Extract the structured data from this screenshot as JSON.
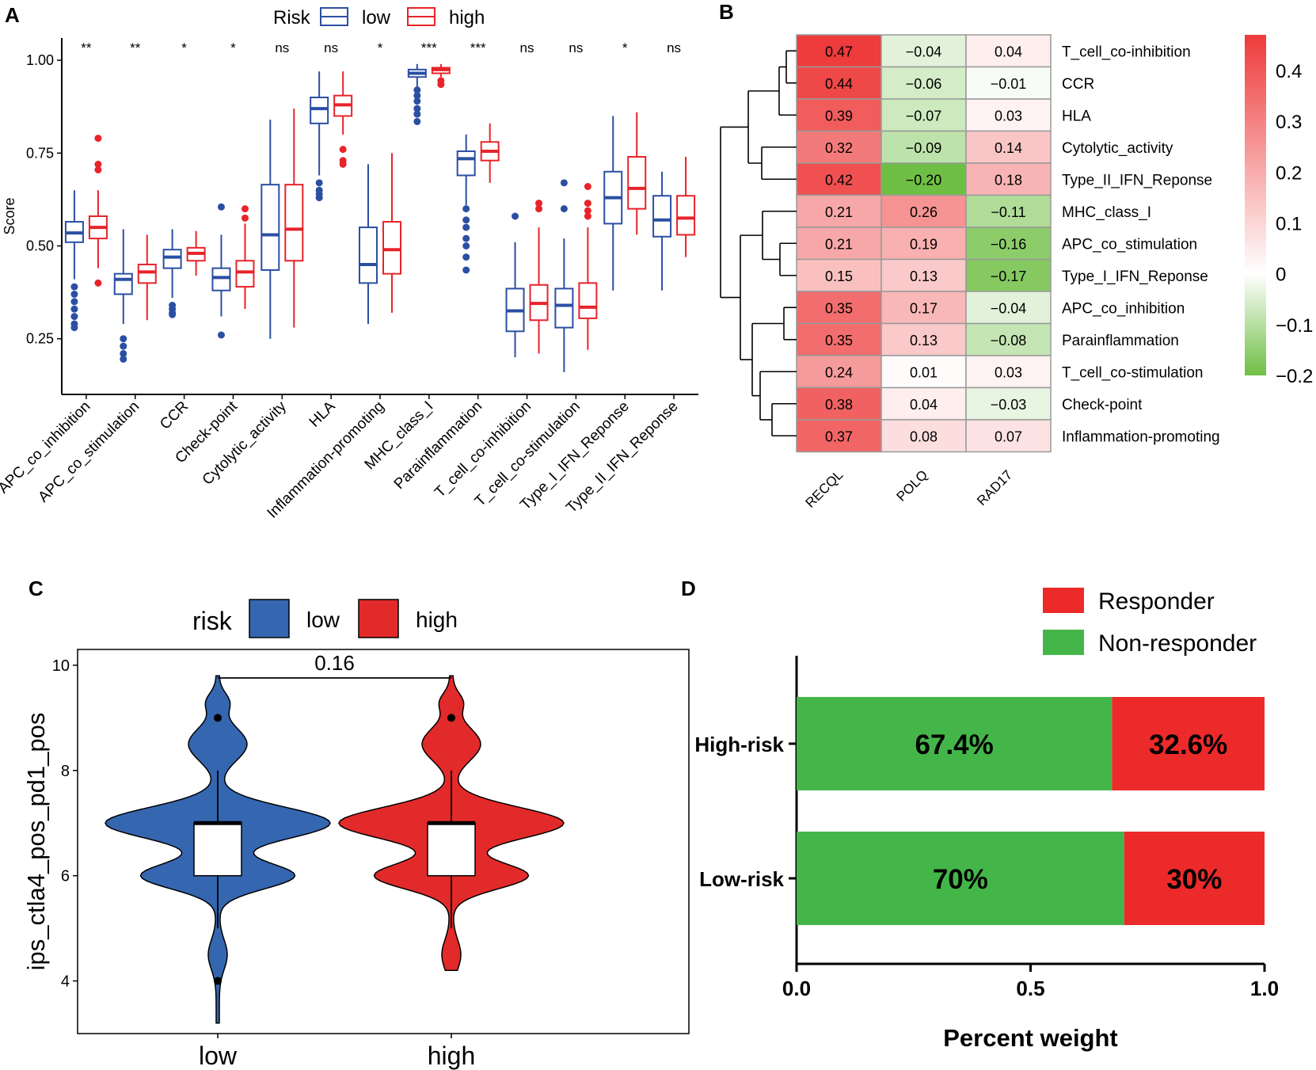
{
  "chart_data": [
    {
      "panel": "A",
      "type": "box",
      "ylabel": "Score",
      "ylim": [
        0.1,
        1.06
      ],
      "yticks": [
        0.25,
        0.5,
        0.75,
        1.0
      ],
      "ytick_labels": [
        "0.25",
        "0.50",
        "0.75",
        "1.00"
      ],
      "legend": {
        "title": "Risk",
        "items": [
          "low",
          "high"
        ],
        "placement": "top"
      },
      "colors": {
        "low": "#2b4fa3",
        "high": "#e8232a"
      },
      "categories": [
        "APC_co_inhibition",
        "APC_co_stimulation",
        "CCR",
        "Check-point",
        "Cytolytic_activity",
        "HLA",
        "Inflammation-promoting",
        "MHC_class_I",
        "Parainflammation",
        "T_cell_co-inhibition",
        "T_cell_co-stimulation",
        "Type_I_IFN_Reponse",
        "Type_II_IFN_Reponse"
      ],
      "significance": [
        "**",
        "**",
        "*",
        "*",
        "ns",
        "ns",
        "*",
        "***",
        "***",
        "ns",
        "ns",
        "*",
        "ns"
      ],
      "series": [
        {
          "name": "low",
          "boxes": [
            {
              "min": 0.41,
              "q1": 0.51,
              "median": 0.535,
              "q3": 0.565,
              "max": 0.65,
              "outliers": [
                0.39,
                0.37,
                0.35,
                0.33,
                0.31,
                0.29,
                0.28
              ]
            },
            {
              "min": 0.29,
              "q1": 0.37,
              "median": 0.41,
              "q3": 0.425,
              "max": 0.545,
              "outliers": [
                0.25,
                0.23,
                0.21,
                0.195
              ]
            },
            {
              "min": 0.36,
              "q1": 0.44,
              "median": 0.47,
              "q3": 0.49,
              "max": 0.545,
              "outliers": [
                0.34,
                0.33,
                0.32,
                0.315
              ]
            },
            {
              "min": 0.31,
              "q1": 0.38,
              "median": 0.415,
              "q3": 0.44,
              "max": 0.53,
              "outliers": [
                0.605,
                0.26
              ]
            },
            {
              "min": 0.25,
              "q1": 0.435,
              "median": 0.53,
              "q3": 0.665,
              "max": 0.84,
              "outliers": []
            },
            {
              "min": 0.69,
              "q1": 0.83,
              "median": 0.87,
              "q3": 0.9,
              "max": 0.97,
              "outliers": [
                0.67,
                0.65,
                0.64,
                0.63
              ]
            },
            {
              "min": 0.29,
              "q1": 0.4,
              "median": 0.45,
              "q3": 0.55,
              "max": 0.72,
              "outliers": []
            },
            {
              "min": 0.925,
              "q1": 0.955,
              "median": 0.965,
              "q3": 0.975,
              "max": 0.99,
              "outliers": [
                0.92,
                0.905,
                0.89,
                0.87,
                0.855,
                0.835
              ]
            },
            {
              "min": 0.61,
              "q1": 0.69,
              "median": 0.735,
              "q3": 0.755,
              "max": 0.8,
              "outliers": [
                0.6,
                0.57,
                0.55,
                0.52,
                0.5,
                0.47,
                0.435
              ]
            },
            {
              "min": 0.2,
              "q1": 0.27,
              "median": 0.325,
              "q3": 0.385,
              "max": 0.51,
              "outliers": [
                0.58
              ]
            },
            {
              "min": 0.16,
              "q1": 0.28,
              "median": 0.34,
              "q3": 0.385,
              "max": 0.52,
              "outliers": [
                0.67,
                0.6
              ]
            },
            {
              "min": 0.38,
              "q1": 0.56,
              "median": 0.63,
              "q3": 0.7,
              "max": 0.85,
              "outliers": []
            },
            {
              "min": 0.38,
              "q1": 0.525,
              "median": 0.57,
              "q3": 0.635,
              "max": 0.7,
              "outliers": []
            }
          ]
        },
        {
          "name": "high",
          "boxes": [
            {
              "min": 0.44,
              "q1": 0.52,
              "median": 0.55,
              "q3": 0.58,
              "max": 0.65,
              "outliers": [
                0.79,
                0.72,
                0.705,
                0.4
              ]
            },
            {
              "min": 0.3,
              "q1": 0.4,
              "median": 0.43,
              "q3": 0.45,
              "max": 0.53,
              "outliers": []
            },
            {
              "min": 0.42,
              "q1": 0.46,
              "median": 0.48,
              "q3": 0.495,
              "max": 0.54,
              "outliers": []
            },
            {
              "min": 0.33,
              "q1": 0.39,
              "median": 0.43,
              "q3": 0.46,
              "max": 0.56,
              "outliers": [
                0.6,
                0.575
              ]
            },
            {
              "min": 0.28,
              "q1": 0.46,
              "median": 0.545,
              "q3": 0.665,
              "max": 0.87,
              "outliers": []
            },
            {
              "min": 0.8,
              "q1": 0.85,
              "median": 0.88,
              "q3": 0.905,
              "max": 0.97,
              "outliers": [
                0.76,
                0.73,
                0.72
              ]
            },
            {
              "min": 0.32,
              "q1": 0.425,
              "median": 0.49,
              "q3": 0.565,
              "max": 0.75,
              "outliers": []
            },
            {
              "min": 0.955,
              "q1": 0.965,
              "median": 0.975,
              "q3": 0.98,
              "max": 0.99,
              "outliers": [
                0.945,
                0.935
              ]
            },
            {
              "min": 0.67,
              "q1": 0.73,
              "median": 0.755,
              "q3": 0.78,
              "max": 0.83,
              "outliers": []
            },
            {
              "min": 0.21,
              "q1": 0.3,
              "median": 0.345,
              "q3": 0.395,
              "max": 0.55,
              "outliers": [
                0.615,
                0.6
              ]
            },
            {
              "min": 0.22,
              "q1": 0.305,
              "median": 0.335,
              "q3": 0.4,
              "max": 0.55,
              "outliers": [
                0.66,
                0.615,
                0.595,
                0.58
              ]
            },
            {
              "min": 0.53,
              "q1": 0.6,
              "median": 0.655,
              "q3": 0.74,
              "max": 0.86,
              "outliers": []
            },
            {
              "min": 0.47,
              "q1": 0.53,
              "median": 0.575,
              "q3": 0.635,
              "max": 0.74,
              "outliers": []
            }
          ]
        }
      ]
    },
    {
      "panel": "B",
      "type": "heatmap",
      "columns": [
        "RECQL",
        "POLQ",
        "RAD17"
      ],
      "rows": [
        "T_cell_co-inhibition",
        "CCR",
        "HLA",
        "Cytolytic_activity",
        "Type_II_IFN_Reponse",
        "MHC_class_I",
        "APC_co_stimulation",
        "Type_I_IFN_Reponse",
        "APC_co_inhibition",
        "Parainflammation",
        "T_cell_co-stimulation",
        "Check-point",
        "Inflammation-promoting"
      ],
      "values": [
        [
          0.47,
          -0.04,
          0.04
        ],
        [
          0.44,
          -0.06,
          -0.01
        ],
        [
          0.39,
          -0.07,
          0.03
        ],
        [
          0.32,
          -0.09,
          0.14
        ],
        [
          0.42,
          -0.2,
          0.18
        ],
        [
          0.21,
          0.26,
          -0.11
        ],
        [
          0.21,
          0.19,
          -0.16
        ],
        [
          0.15,
          0.13,
          -0.17
        ],
        [
          0.35,
          0.17,
          -0.04
        ],
        [
          0.35,
          0.13,
          -0.08
        ],
        [
          0.24,
          0.01,
          0.03
        ],
        [
          0.38,
          0.04,
          -0.03
        ],
        [
          0.37,
          0.08,
          0.07
        ]
      ],
      "value_labels": [
        [
          "0.47",
          "−0.04",
          "0.04"
        ],
        [
          "0.44",
          "−0.06",
          "−0.01"
        ],
        [
          "0.39",
          "−0.07",
          "0.03"
        ],
        [
          "0.32",
          "−0.09",
          "0.14"
        ],
        [
          "0.42",
          "−0.20",
          "0.18"
        ],
        [
          "0.21",
          "0.26",
          "−0.11"
        ],
        [
          "0.21",
          "0.19",
          "−0.16"
        ],
        [
          "0.15",
          "0.13",
          "−0.17"
        ],
        [
          "0.35",
          "0.17",
          "−0.04"
        ],
        [
          "0.35",
          "0.13",
          "−0.08"
        ],
        [
          "0.24",
          "0.01",
          "0.03"
        ],
        [
          "0.38",
          "0.04",
          "−0.03"
        ],
        [
          "0.37",
          "0.08",
          "0.07"
        ]
      ],
      "color_range": [
        -0.2,
        0.47
      ],
      "colorbar_ticks": [
        0.4,
        0.3,
        0.2,
        0.1,
        0,
        -0.1,
        -0.2
      ],
      "colorbar_tick_labels": [
        "0.4",
        "0.3",
        "0.2",
        "0.1",
        "0",
        "−0.1",
        "−0.2"
      ],
      "colors": {
        "low": "#6fbf44",
        "mid": "#ffffff",
        "high": "#ee3b3b"
      }
    },
    {
      "panel": "C",
      "type": "violin",
      "ylabel": "ips_ctla4_pos_pd1_pos",
      "ylim": [
        3,
        10.3
      ],
      "yticks": [
        4,
        6,
        8,
        10
      ],
      "ytick_labels": [
        "4",
        "6",
        "8",
        "10"
      ],
      "categories": [
        "low",
        "high"
      ],
      "legend": {
        "title": "risk",
        "items": [
          "low",
          "high"
        ],
        "placement": "top"
      },
      "colors": {
        "low": "#3566b0",
        "high": "#e32a2a"
      },
      "p_value_label": "0.16",
      "boxes": [
        {
          "min": 5,
          "q1": 6,
          "median": 7,
          "q3": 7,
          "max": 8,
          "outliers": [
            9,
            4
          ]
        },
        {
          "min": 5,
          "q1": 6,
          "median": 7,
          "q3": 7,
          "max": 8,
          "outliers": [
            9
          ]
        }
      ],
      "violin_range": [
        [
          3.2,
          9.8
        ],
        [
          4.2,
          9.8
        ]
      ]
    },
    {
      "panel": "D",
      "type": "bar",
      "orientation": "horizontal",
      "stacked": true,
      "xlabel": "Percent weight",
      "xlim": [
        0,
        1
      ],
      "xticks": [
        0,
        0.5,
        1
      ],
      "xtick_labels": [
        "0.0",
        "0.5",
        "1.0"
      ],
      "categories": [
        "High-risk",
        "Low-risk"
      ],
      "series": [
        {
          "name": "Non-responder",
          "values": [
            0.674,
            0.7
          ],
          "labels": [
            "67.4%",
            "70%"
          ],
          "color": "#44b649"
        },
        {
          "name": "Responder",
          "values": [
            0.326,
            0.3
          ],
          "labels": [
            "32.6%",
            "30%"
          ],
          "color": "#ed2a2a"
        }
      ],
      "legend_order": [
        "Responder",
        "Non-responder"
      ]
    }
  ]
}
